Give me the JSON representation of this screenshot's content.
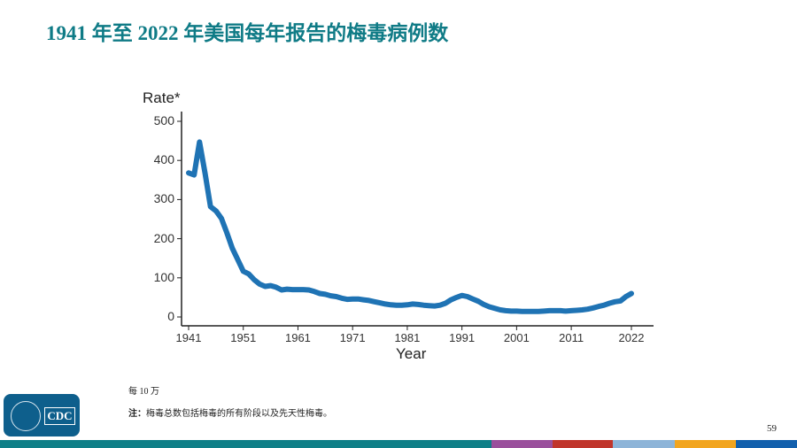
{
  "slide": {
    "title": "1941 年至 2022 年美国每年报告的梅毒病例数",
    "footnote_unit": "每 10 万",
    "footnote_note_label": "注：",
    "footnote_note_text": "梅毒总数包括梅毒的所有阶段以及先天性梅毒。",
    "page_number": "59",
    "logo_text": "CDC",
    "title_color": "#0f7b86",
    "bottom_bar_colors": [
      "#0e7f87",
      "#9a4f9c",
      "#c0352b",
      "#8db4d8",
      "#f2a51f",
      "#1260ad"
    ]
  },
  "chart_data": {
    "type": "line",
    "title": "1941 年至 2022 年美国每年报告的梅毒病例数",
    "xlabel": "Year",
    "ylabel": "Rate*",
    "ylim": [
      0,
      500
    ],
    "xlim": [
      1941,
      2022
    ],
    "yticks": [
      0,
      100,
      200,
      300,
      400,
      500
    ],
    "xticks": [
      1941,
      1951,
      1961,
      1971,
      1981,
      1991,
      2001,
      2011,
      2022
    ],
    "grid": false,
    "legend": null,
    "line_color": "#1f73b4",
    "x": [
      1941,
      1942,
      1943,
      1944,
      1945,
      1946,
      1947,
      1948,
      1949,
      1950,
      1951,
      1952,
      1953,
      1954,
      1955,
      1956,
      1957,
      1958,
      1959,
      1960,
      1961,
      1962,
      1963,
      1964,
      1965,
      1966,
      1967,
      1968,
      1969,
      1970,
      1971,
      1972,
      1973,
      1974,
      1975,
      1976,
      1977,
      1978,
      1979,
      1980,
      1981,
      1982,
      1983,
      1984,
      1985,
      1986,
      1987,
      1988,
      1989,
      1990,
      1991,
      1992,
      1993,
      1994,
      1995,
      1996,
      1997,
      1998,
      1999,
      2000,
      2001,
      2002,
      2003,
      2004,
      2005,
      2006,
      2007,
      2008,
      2009,
      2010,
      2011,
      2012,
      2013,
      2014,
      2015,
      2016,
      2017,
      2018,
      2019,
      2020,
      2021,
      2022
    ],
    "values": [
      368,
      363,
      447,
      368,
      282,
      271,
      252,
      215,
      175,
      146,
      117,
      110,
      95,
      84,
      78,
      80,
      76,
      69,
      71,
      70,
      70,
      70,
      69,
      65,
      60,
      58,
      54,
      52,
      48,
      45,
      46,
      46,
      44,
      42,
      39,
      36,
      33,
      31,
      30,
      30,
      31,
      33,
      32,
      30,
      29,
      28,
      30,
      35,
      44,
      50,
      55,
      52,
      46,
      40,
      32,
      26,
      22,
      18,
      16,
      15,
      15,
      14,
      14,
      14,
      14,
      15,
      16,
      16,
      16,
      15,
      16,
      17,
      18,
      20,
      23,
      27,
      30,
      35,
      39,
      41,
      52,
      60
    ]
  }
}
